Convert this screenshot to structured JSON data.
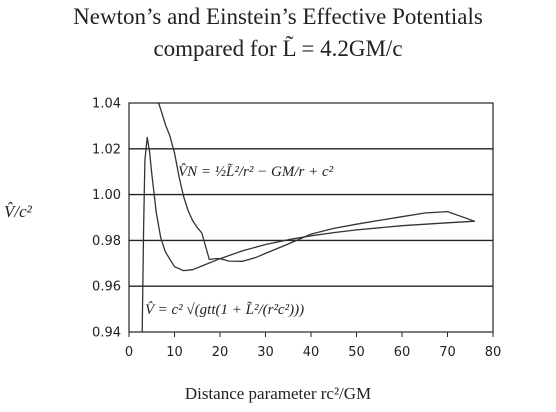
{
  "title_line1": "Newton’s and Einstein’s Effective Potentials",
  "title_line2": "compared for L̃ = 4.2GM/c",
  "ylabel": "V̂/c²",
  "xlabel": "Distance parameter rc²/GM",
  "annotations": {
    "newton": "V̂N = ½L̃²/r² − GM/r + c²",
    "einstein": "V̂ = c² √(gtt(1 + L̃²/(r²c²)))"
  },
  "chart_data": {
    "type": "line",
    "title": "Newton’s and Einstein’s Effective Potentials compared for L̃ = 4.2GM/c",
    "xlabel": "Distance parameter rc²/GM",
    "ylabel": "V̂/c²",
    "xlim": [
      0,
      80
    ],
    "ylim": [
      0.94,
      1.04
    ],
    "x_ticks": [
      "0",
      "10",
      "20",
      "30",
      "40",
      "50",
      "60",
      "70",
      "80"
    ],
    "y_ticks": [
      "0.94",
      "0.96",
      "0.98",
      "1.00",
      "1.02",
      "1.04"
    ],
    "grid": "horizontal",
    "series": [
      {
        "label": "V̂N = ½L̃²/r² − GM/r + c²",
        "x": [
          6.5,
          7,
          8,
          9,
          10,
          11,
          12,
          13,
          14,
          15,
          16,
          17.64,
          19,
          20,
          22,
          25,
          28,
          30,
          35,
          40,
          45,
          50,
          55,
          60,
          65,
          70,
          76
        ],
        "y": [
          1.04,
          1.0371,
          1.0306,
          1.0256,
          1.0182,
          1.0077,
          0.99917,
          0.99287,
          0.98857,
          0.9856,
          0.98324,
          0.97166,
          0.97205,
          0.97205,
          0.97097,
          0.97088,
          0.97262,
          0.97433,
          0.97841,
          0.98277,
          0.98525,
          0.98706,
          0.98874,
          0.99033,
          0.99196,
          0.99256,
          0.98834
        ]
      },
      {
        "label": "V̂ = c² √(gtt(1 + L̃²/(r²c²)))",
        "x": [
          2.9,
          3.2,
          3.5,
          4,
          4.5,
          5,
          6,
          7,
          8,
          10,
          12,
          14,
          16,
          20,
          25,
          30,
          35,
          40,
          45,
          50,
          60,
          70,
          76
        ],
        "y": [
          0.94,
          0.985,
          1.015,
          1.025,
          1.019,
          1.009,
          0.992,
          0.981,
          0.975,
          0.9685,
          0.9668,
          0.9672,
          0.9688,
          0.972,
          0.9755,
          0.9782,
          0.9803,
          0.982,
          0.9834,
          0.9846,
          0.9864,
          0.9877,
          0.9884
        ]
      }
    ]
  }
}
